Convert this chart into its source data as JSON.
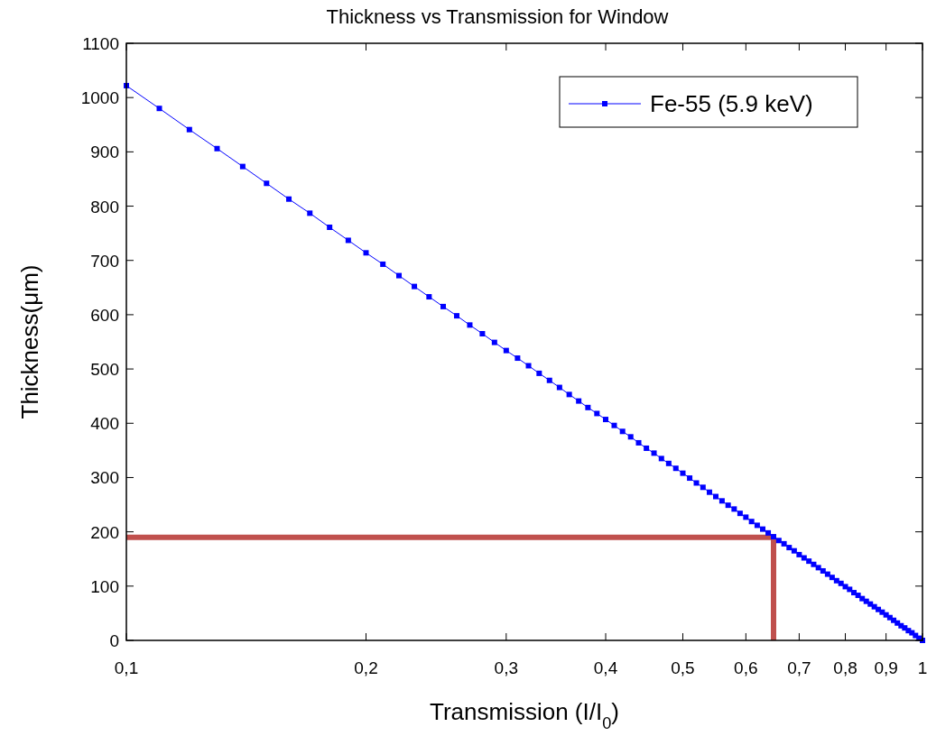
{
  "chart_data": {
    "type": "line",
    "title": "Thickness vs Transmission for Window",
    "xlabel": "Transmission (I/I$_{0}$)",
    "ylabel": "Thickness(μm)",
    "log": "x",
    "xlim": [
      0.1,
      1
    ],
    "ylim": [
      0,
      1100
    ],
    "xticks": [
      {
        "value": 0.1,
        "label": "0,1"
      },
      {
        "value": 0.2,
        "label": "0,2"
      },
      {
        "value": 0.3,
        "label": "0,3"
      },
      {
        "value": 0.4,
        "label": "0,4"
      },
      {
        "value": 0.5,
        "label": "0,5"
      },
      {
        "value": 0.6,
        "label": "0,6"
      },
      {
        "value": 0.7,
        "label": "0,7"
      },
      {
        "value": 0.8,
        "label": "0,8"
      },
      {
        "value": 0.9,
        "label": "0,9"
      },
      1
    ],
    "yticks": [
      0,
      100,
      200,
      300,
      400,
      500,
      600,
      700,
      800,
      900,
      1000,
      1100
    ],
    "legend": "top right",
    "marker": "square",
    "line_style": "solid",
    "ref_lines": [
      {
        "axis": "y",
        "value": 190,
        "color": "#c0504d"
      },
      {
        "axis": "x",
        "value": 0.65,
        "color": "#c0504d"
      }
    ],
    "x": [
      0.1,
      0.11,
      0.12,
      0.13,
      0.14,
      0.15,
      0.16,
      0.17,
      0.18,
      0.19,
      0.2,
      0.21,
      0.22,
      0.23,
      0.24,
      0.25,
      0.26,
      0.27,
      0.28,
      0.29,
      0.3,
      0.31,
      0.32,
      0.33,
      0.34,
      0.35,
      0.36,
      0.37,
      0.38,
      0.39,
      0.4,
      0.41,
      0.42,
      0.43,
      0.44,
      0.45,
      0.46,
      0.47,
      0.48,
      0.49,
      0.5,
      0.51,
      0.52,
      0.53,
      0.54,
      0.55,
      0.56,
      0.57,
      0.58,
      0.59,
      0.6,
      0.61,
      0.62,
      0.63,
      0.64,
      0.65,
      0.66,
      0.67,
      0.68,
      0.69,
      0.7,
      0.71,
      0.72,
      0.73,
      0.74,
      0.75,
      0.76,
      0.77,
      0.78,
      0.79,
      0.8,
      0.81,
      0.82,
      0.83,
      0.84,
      0.85,
      0.86,
      0.87,
      0.88,
      0.89,
      0.9,
      0.91,
      0.92,
      0.93,
      0.94,
      0.95,
      0.96,
      0.97,
      0.98,
      0.99,
      1
    ],
    "series": [
      {
        "name": "Fe-55 (5.9 keV)",
        "color": "#0000ff",
        "values": [
          1022,
          980,
          941,
          906,
          873,
          842,
          813,
          787,
          761,
          737,
          714,
          693,
          672,
          652,
          633,
          615,
          598,
          581,
          565,
          549,
          534,
          520,
          506,
          492,
          479,
          466,
          453,
          441,
          429,
          418,
          407,
          396,
          385,
          375,
          364,
          354,
          345,
          335,
          326,
          317,
          308,
          299,
          290,
          282,
          273,
          265,
          257,
          249,
          242,
          234,
          227,
          219,
          212,
          205,
          198,
          191,
          184,
          178,
          171,
          165,
          158,
          152,
          146,
          140,
          134,
          128,
          122,
          116,
          110,
          105,
          99,
          94,
          88,
          83,
          77,
          72,
          67,
          62,
          57,
          52,
          47,
          42,
          37,
          32,
          27,
          23,
          18,
          14,
          9,
          4,
          0
        ]
      }
    ]
  }
}
